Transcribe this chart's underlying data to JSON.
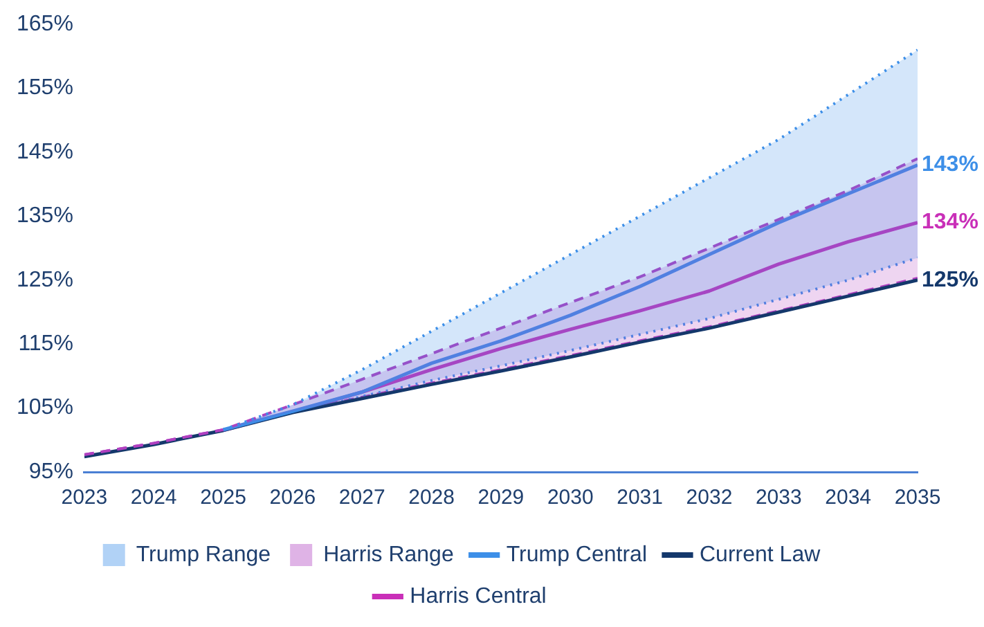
{
  "chart_data": {
    "type": "line",
    "x": [
      2023,
      2024,
      2025,
      2026,
      2027,
      2028,
      2029,
      2030,
      2031,
      2032,
      2033,
      2034,
      2035
    ],
    "series": [
      {
        "name": "Trump Range",
        "type": "area",
        "color": "#3d8fe8",
        "line_style": "dotted",
        "values": [
          null,
          null,
          101.6,
          105.5,
          111,
          117,
          123,
          129,
          135,
          141,
          147,
          154,
          161
        ]
      },
      {
        "name": "Harris Range",
        "type": "area",
        "color": "#b040c0",
        "line_style": "dashed",
        "values": [
          97.7,
          99.5,
          101.6,
          105.5,
          109.5,
          113.5,
          117.5,
          121.5,
          125.5,
          130,
          134.5,
          139,
          144
        ]
      },
      {
        "name": "Trump Central",
        "type": "line",
        "color": "#3d8fe8",
        "values": [
          null,
          null,
          101.6,
          104.5,
          107.5,
          112,
          115.5,
          119.5,
          124,
          129,
          134,
          138.5,
          143
        ],
        "value_labels": [
          null,
          null,
          null,
          null,
          null,
          null,
          null,
          null,
          null,
          null,
          null,
          null,
          "143%"
        ]
      },
      {
        "name": "Current Law",
        "type": "line",
        "color": "#14386b",
        "values": [
          97.4,
          99.3,
          101.5,
          104.3,
          106.5,
          108.7,
          110.8,
          113,
          115.3,
          117.5,
          120,
          122.5,
          125
        ],
        "value_labels": [
          null,
          null,
          null,
          null,
          null,
          null,
          null,
          null,
          null,
          null,
          null,
          null,
          "125%"
        ]
      },
      {
        "name": "Harris Central",
        "type": "line",
        "color": "#c92fb8",
        "values": [
          null,
          null,
          101.5,
          104.4,
          107.5,
          111,
          114.3,
          117.3,
          120.2,
          123.3,
          127.5,
          131,
          134
        ],
        "value_labels": [
          null,
          null,
          null,
          null,
          null,
          null,
          null,
          null,
          null,
          null,
          null,
          null,
          "134%"
        ]
      },
      {
        "type": "line",
        "color": "#3d8fe8",
        "line_style": "dotted",
        "values": [
          null,
          null,
          101.5,
          104.3,
          106.8,
          109.3,
          111.6,
          114,
          116.5,
          119,
          122,
          125,
          128.5
        ]
      },
      {
        "type": "line",
        "color": "#b040c0",
        "line_style": "dashed",
        "values": [
          97.7,
          99.5,
          101.6,
          104.5,
          106.7,
          108.9,
          111,
          113.2,
          115.5,
          117.7,
          120.2,
          122.7,
          125.3
        ]
      }
    ],
    "xlim": [
      2023,
      2035
    ],
    "xticks": [
      2023,
      2024,
      2025,
      2026,
      2027,
      2028,
      2029,
      2030,
      2031,
      2032,
      2033,
      2034,
      2035
    ],
    "ylim": [
      95,
      165
    ],
    "yticks": [
      {
        "value": 95,
        "label": "95%"
      },
      {
        "value": 105,
        "label": "105%"
      },
      {
        "value": 115,
        "label": "115%"
      },
      {
        "value": 125,
        "label": "125%"
      },
      {
        "value": 135,
        "label": "135%"
      },
      {
        "value": 145,
        "label": "145%"
      },
      {
        "value": 155,
        "label": "155%"
      },
      {
        "value": 165,
        "label": "165%"
      }
    ],
    "grid": false,
    "legend": "bottom",
    "marker": "none"
  }
}
